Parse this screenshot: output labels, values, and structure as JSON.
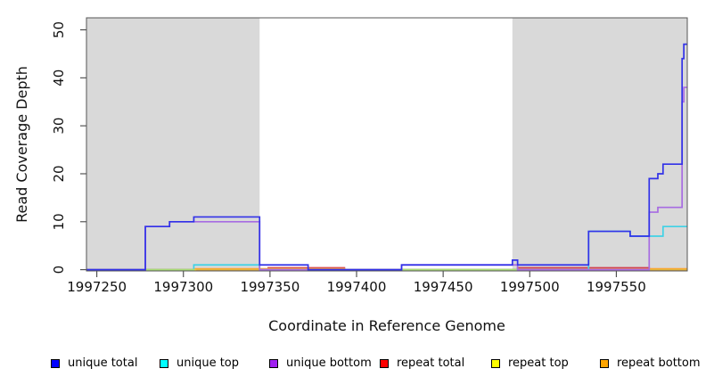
{
  "figure": {
    "title": "",
    "xlabel": "Coordinate in Reference Genome",
    "ylabel": "Read Coverage Depth"
  },
  "chart_data": {
    "type": "line",
    "subtype": "step-coverage",
    "title": "",
    "xlabel": "Coordinate in Reference Genome",
    "ylabel": "Read Coverage Depth",
    "xlim": [
      1997244,
      1997591
    ],
    "ylim": [
      -0.25,
      52.5
    ],
    "x_ticks": [
      1997250,
      1997300,
      1997350,
      1997400,
      1997450,
      1997500,
      1997550
    ],
    "y_ticks": [
      0,
      10,
      20,
      30,
      40,
      50
    ],
    "grid": false,
    "legend_position": "bottom",
    "shade_color": "#D9D9D9",
    "background_shaded_regions": [
      [
        1997244,
        1997344
      ],
      [
        1997490,
        1997591
      ]
    ],
    "series": [
      {
        "name": "unique total",
        "legend_color": "#0000FF",
        "line_color": "#3232E8",
        "steps": [
          [
            1997244,
            0
          ],
          [
            1997278,
            9
          ],
          [
            1997292,
            10
          ],
          [
            1997306,
            11
          ],
          [
            1997344,
            1
          ],
          [
            1997372,
            0
          ],
          [
            1997426,
            1
          ],
          [
            1997490,
            2
          ],
          [
            1997493,
            1
          ],
          [
            1997534,
            8
          ],
          [
            1997558,
            7
          ],
          [
            1997569,
            19
          ],
          [
            1997574,
            20
          ],
          [
            1997577,
            22
          ],
          [
            1997588,
            44
          ],
          [
            1997589,
            47
          ]
        ]
      },
      {
        "name": "unique top",
        "legend_color": "#00FFFF",
        "line_color": "#3FD2E6",
        "steps": [
          [
            1997244,
            0
          ],
          [
            1997306,
            1
          ],
          [
            1997344,
            0
          ],
          [
            1997534,
            8
          ],
          [
            1997558,
            7
          ],
          [
            1997577,
            9
          ]
        ]
      },
      {
        "name": "unique bottom",
        "legend_color": "#A020F0",
        "line_color": "#A76CE2",
        "steps": [
          [
            1997244,
            0
          ],
          [
            1997278,
            9
          ],
          [
            1997292,
            10
          ],
          [
            1997344,
            0
          ],
          [
            1997426,
            1
          ],
          [
            1997493,
            0
          ],
          [
            1997569,
            12
          ],
          [
            1997574,
            13
          ],
          [
            1997588,
            35
          ],
          [
            1997589,
            38
          ]
        ]
      },
      {
        "name": "repeat total",
        "legend_color": "#FF0000",
        "line_color": "#D2414F",
        "steps": [
          [
            1997244,
            0
          ],
          [
            1997349,
            0.4
          ],
          [
            1997393,
            0
          ],
          [
            1997493,
            0.4
          ],
          [
            1997569,
            0
          ]
        ]
      },
      {
        "name": "repeat top",
        "legend_color": "#FFFF00",
        "line_color": "#E2E23C",
        "opacity": 0.65,
        "steps": [
          [
            1997244,
            0
          ]
        ]
      },
      {
        "name": "repeat bottom",
        "legend_color": "#FFA500",
        "line_color": "#FF9E2E",
        "steps": [
          [
            1997244,
            0
          ],
          [
            1997307,
            0.2
          ],
          [
            1997393,
            0
          ],
          [
            1997569,
            0.2
          ]
        ]
      }
    ]
  }
}
